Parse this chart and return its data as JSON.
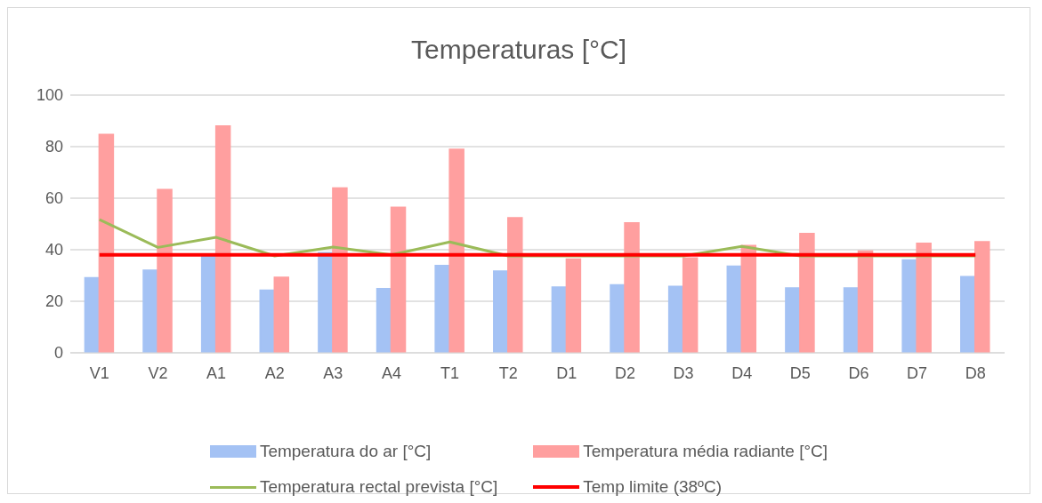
{
  "chart_data": {
    "type": "bar",
    "title": "Temperaturas [°C]",
    "categories": [
      "V1",
      "V2",
      "A1",
      "A2",
      "A3",
      "A4",
      "T1",
      "T2",
      "D1",
      "D2",
      "D3",
      "D4",
      "D5",
      "D6",
      "D7",
      "D8"
    ],
    "series": [
      {
        "name": "Temperatura do ar [°C]",
        "color": "#a4c2f4",
        "values": [
          29.1,
          32.1,
          37.5,
          24.3,
          38.9,
          24.9,
          33.9,
          31.7,
          25.5,
          26.4,
          25.8,
          33.6,
          25.2,
          25.2,
          36,
          29.6
        ]
      },
      {
        "name": "Temperatura média radiante [°C]",
        "color": "#ff9f9f",
        "values": [
          84.7,
          63.4,
          88,
          29.3,
          64,
          56.5,
          79,
          52.4,
          36.4,
          50.4,
          36.8,
          41.6,
          46.3,
          39.5,
          42.5,
          43.1
        ]
      },
      {
        "name": "Temperatura rectal prevista [°C]",
        "type": "line",
        "color": "#9bbb59",
        "values": [
          51.7,
          40.9,
          44.8,
          37.6,
          41,
          38,
          43,
          37.6,
          37.6,
          37.6,
          37.6,
          41.3,
          37.6,
          37.6,
          37.6,
          37.6
        ]
      },
      {
        "name": "Temp limite (38ºC)",
        "type": "line",
        "color": "#ff0000",
        "values": [
          38,
          38,
          38,
          38,
          38,
          38,
          38,
          38,
          38,
          38,
          38,
          38,
          38,
          38,
          38,
          38
        ]
      }
    ],
    "ylim": [
      0,
      100
    ],
    "yticks": [
      0,
      20,
      40,
      60,
      80,
      100
    ],
    "grid": "y",
    "legend": "bottom",
    "marker": "none"
  }
}
